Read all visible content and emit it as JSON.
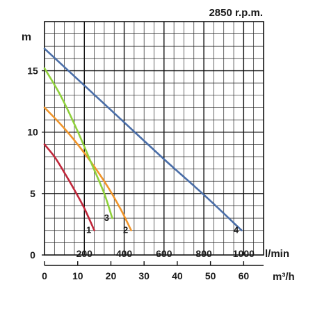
{
  "chart_data": {
    "type": "line",
    "title": "2850 r.p.m.",
    "ylabel": "m",
    "xlabel": "l/min",
    "x2label": "m³/h",
    "ylim": [
      0,
      19
    ],
    "xlim": [
      0,
      1100
    ],
    "grid": true,
    "y_ticks": [
      0,
      5,
      10,
      15
    ],
    "x_ticks": [
      200,
      400,
      600,
      800,
      1000
    ],
    "x2_ticks": [
      0,
      10,
      20,
      30,
      40,
      50,
      60
    ],
    "series": [
      {
        "name": "1",
        "color": "#c0263a",
        "points": [
          [
            0,
            9.0
          ],
          [
            50,
            8.0
          ],
          [
            100,
            6.7
          ],
          [
            150,
            5.3
          ],
          [
            200,
            3.8
          ],
          [
            250,
            2.0
          ]
        ]
      },
      {
        "name": "2",
        "color": "#f0952a",
        "points": [
          [
            0,
            12.0
          ],
          [
            100,
            10.3
          ],
          [
            200,
            8.3
          ],
          [
            300,
            6.0
          ],
          [
            380,
            3.8
          ],
          [
            435,
            2.0
          ]
        ]
      },
      {
        "name": "3",
        "color": "#8fd13a",
        "points": [
          [
            0,
            15.2
          ],
          [
            80,
            13.0
          ],
          [
            160,
            10.3
          ],
          [
            240,
            7.3
          ],
          [
            300,
            5.0
          ],
          [
            340,
            3.0
          ]
        ]
      },
      {
        "name": "4",
        "color": "#4a6ea8",
        "points": [
          [
            0,
            16.8
          ],
          [
            200,
            13.8
          ],
          [
            400,
            10.8
          ],
          [
            600,
            7.8
          ],
          [
            800,
            4.9
          ],
          [
            990,
            2.0
          ]
        ]
      }
    ]
  }
}
